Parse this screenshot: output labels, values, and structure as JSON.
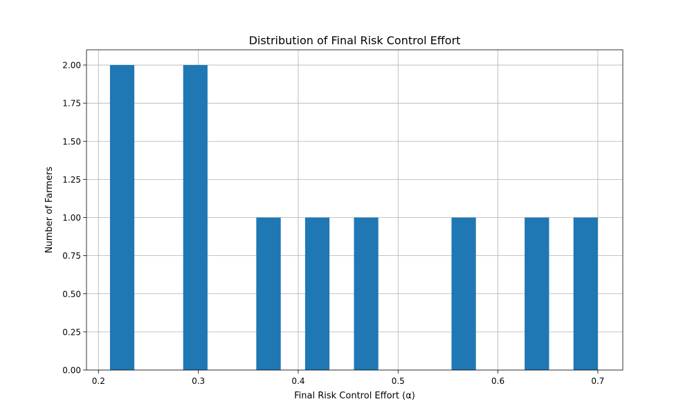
{
  "chart_data": {
    "type": "bar",
    "title": "Distribution of Final Risk Control Effort",
    "xlabel": "Final Risk Control Effort (α)",
    "ylabel": "Number of Farmers",
    "xlim": [
      0.188,
      0.725
    ],
    "ylim": [
      0,
      2.1
    ],
    "xticks": [
      0.2,
      0.3,
      0.4,
      0.5,
      0.6,
      0.7
    ],
    "xtick_labels": [
      "0.2",
      "0.3",
      "0.4",
      "0.5",
      "0.6",
      "0.7"
    ],
    "yticks": [
      0,
      0.25,
      0.5,
      0.75,
      1.0,
      1.25,
      1.5,
      1.75,
      2.0
    ],
    "ytick_labels": [
      "0.00",
      "0.25",
      "0.50",
      "0.75",
      "1.00",
      "1.25",
      "1.50",
      "1.75",
      "2.00"
    ],
    "grid": true,
    "bar_color": "#1f77b4",
    "bins": [
      {
        "x0": 0.2115,
        "x1": 0.2359,
        "count": 2
      },
      {
        "x0": 0.2848,
        "x1": 0.3092,
        "count": 2
      },
      {
        "x0": 0.358,
        "x1": 0.3825,
        "count": 1
      },
      {
        "x0": 0.4069,
        "x1": 0.4313,
        "count": 1
      },
      {
        "x0": 0.4558,
        "x1": 0.4802,
        "count": 1
      },
      {
        "x0": 0.5535,
        "x1": 0.5779,
        "count": 1
      },
      {
        "x0": 0.6267,
        "x1": 0.6512,
        "count": 1
      },
      {
        "x0": 0.6756,
        "x1": 0.7,
        "count": 1
      }
    ]
  }
}
